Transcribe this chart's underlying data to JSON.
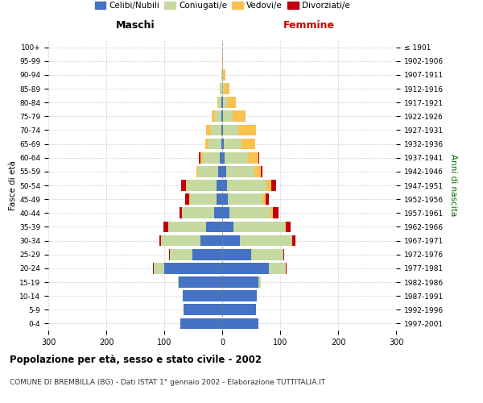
{
  "age_groups": [
    "0-4",
    "5-9",
    "10-14",
    "15-19",
    "20-24",
    "25-29",
    "30-34",
    "35-39",
    "40-44",
    "45-49",
    "50-54",
    "55-59",
    "60-64",
    "65-69",
    "70-74",
    "75-79",
    "80-84",
    "85-89",
    "90-94",
    "95-99",
    "100+"
  ],
  "birth_years": [
    "1997-2001",
    "1992-1996",
    "1987-1991",
    "1982-1986",
    "1977-1981",
    "1972-1976",
    "1967-1971",
    "1962-1966",
    "1957-1961",
    "1952-1956",
    "1947-1951",
    "1942-1946",
    "1937-1941",
    "1932-1936",
    "1927-1931",
    "1922-1926",
    "1917-1921",
    "1912-1916",
    "1907-1911",
    "1902-1906",
    "≤ 1901"
  ],
  "male": {
    "celibi": [
      72,
      66,
      68,
      75,
      100,
      52,
      38,
      28,
      14,
      10,
      10,
      7,
      4,
      2,
      2,
      1,
      1,
      0,
      0,
      0,
      0
    ],
    "coniugati": [
      0,
      0,
      0,
      1,
      18,
      38,
      68,
      65,
      55,
      46,
      51,
      34,
      30,
      22,
      18,
      12,
      6,
      3,
      1,
      0,
      0
    ],
    "vedovi": [
      0,
      0,
      0,
      0,
      0,
      0,
      0,
      0,
      1,
      1,
      2,
      3,
      4,
      5,
      8,
      5,
      2,
      1,
      0,
      0,
      0
    ],
    "divorziati": [
      0,
      0,
      0,
      0,
      1,
      2,
      3,
      8,
      4,
      7,
      8,
      1,
      2,
      0,
      0,
      0,
      0,
      0,
      0,
      0,
      0
    ]
  },
  "female": {
    "nubili": [
      62,
      58,
      60,
      62,
      80,
      50,
      30,
      20,
      12,
      10,
      9,
      7,
      4,
      3,
      2,
      2,
      1,
      0,
      0,
      0,
      0
    ],
    "coniugate": [
      0,
      0,
      0,
      4,
      30,
      55,
      90,
      88,
      72,
      60,
      68,
      48,
      40,
      30,
      26,
      16,
      8,
      4,
      2,
      0,
      0
    ],
    "vedove": [
      0,
      0,
      0,
      0,
      0,
      0,
      1,
      2,
      3,
      5,
      8,
      12,
      18,
      24,
      30,
      22,
      14,
      8,
      3,
      1,
      0
    ],
    "divorziate": [
      0,
      0,
      0,
      0,
      1,
      2,
      5,
      8,
      10,
      6,
      8,
      2,
      2,
      0,
      0,
      0,
      0,
      0,
      0,
      0,
      0
    ]
  },
  "colors": {
    "celibi_nubili": "#4472C4",
    "coniugati": "#C5D9A0",
    "vedovi": "#FAC050",
    "divorziati": "#C0000C"
  },
  "title": "Popolazione per età, sesso e stato civile - 2002",
  "subtitle": "COMUNE DI BREMBILLA (BG) - Dati ISTAT 1° gennaio 2002 - Elaborazione TUTTITALIA.IT",
  "xlabel_left": "Maschi",
  "xlabel_right": "Femmine",
  "ylabel_left": "Fasce di età",
  "ylabel_right": "Anni di nascita",
  "xlim": 300,
  "legend_labels": [
    "Celibi/Nubili",
    "Coniugati/e",
    "Vedovi/e",
    "Divorziati/e"
  ],
  "background_color": "#FFFFFF",
  "grid_color": "#CCCCCC"
}
